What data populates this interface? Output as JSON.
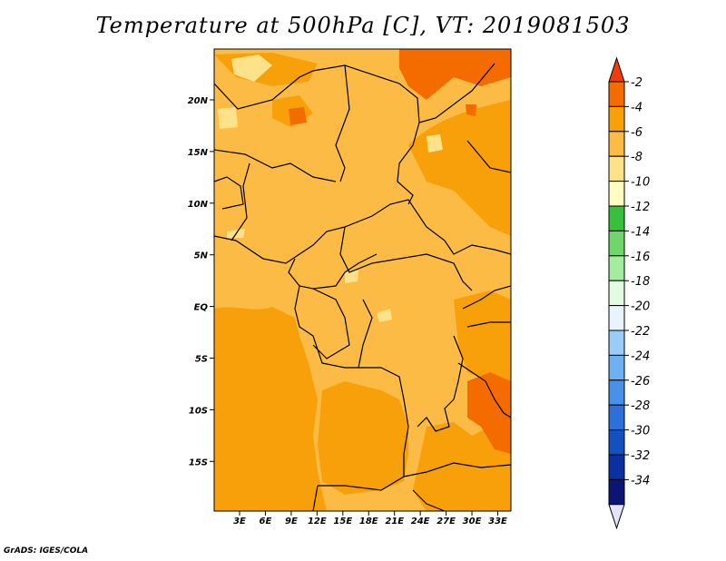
{
  "title": "Temperature at 500hPa [C], VT: 2019081503",
  "footer": "GrADS: IGES/COLA",
  "map": {
    "lat_ticks": [
      "20N",
      "15N",
      "10N",
      "5N",
      "EQ",
      "5S",
      "10S",
      "15S"
    ],
    "lon_ticks": [
      "3E",
      "6E",
      "9E",
      "12E",
      "15E",
      "18E",
      "21E",
      "24E",
      "27E",
      "30E",
      "33E"
    ],
    "colors": {
      "t_10_8": "#fee28a",
      "t_8_6": "#fbbb45",
      "t_6_4": "#f7a00a",
      "t_4_2": "#f46b00",
      "borders": "#000000"
    }
  },
  "colorbar": {
    "labels": [
      "-2",
      "-4",
      "-6",
      "-8",
      "-10",
      "-12",
      "-14",
      "-16",
      "-18",
      "-20",
      "-22",
      "-24",
      "-26",
      "-28",
      "-30",
      "-32",
      "-34"
    ],
    "colors": [
      "#f46b00",
      "#f7a00a",
      "#fbbb45",
      "#fee28a",
      "#fffdc2",
      "#38c03c",
      "#6ed66a",
      "#a3eca0",
      "#e2fbe2",
      "#e7f4ff",
      "#9bcbf7",
      "#6eb1f1",
      "#4791e9",
      "#2b71d9",
      "#1351c1",
      "#0b30a0",
      "#0a1574"
    ],
    "top_arrow_color": "#f23c0c",
    "bottom_arrow_color": "#e4e2ff"
  }
}
